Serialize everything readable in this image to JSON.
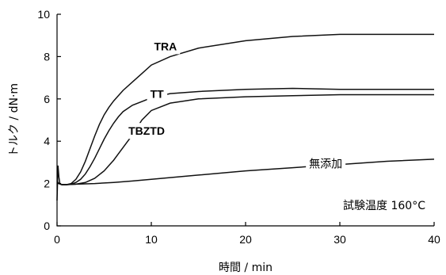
{
  "chart_data": {
    "type": "line",
    "title": "",
    "xlabel": "時間 / min",
    "ylabel": "トルク / dN·m",
    "xlim": [
      0,
      40
    ],
    "ylim": [
      0,
      10
    ],
    "xticks": [
      "0",
      "10",
      "20",
      "30",
      "40"
    ],
    "yticks": [
      "0",
      "2",
      "4",
      "6",
      "8",
      "10"
    ],
    "grid": false,
    "legend": "none",
    "annotation": "試験温度 160°C",
    "series": [
      {
        "name": "TRA",
        "x": [
          0,
          0.2,
          0.5,
          1,
          1.5,
          2,
          2.5,
          3,
          3.5,
          4,
          4.5,
          5,
          5.5,
          6,
          7,
          8,
          9,
          10,
          12,
          15,
          20,
          25,
          30,
          35,
          40
        ],
        "y": [
          2.1,
          2.0,
          1.95,
          1.95,
          2.0,
          2.2,
          2.55,
          3.05,
          3.65,
          4.25,
          4.8,
          5.25,
          5.6,
          5.9,
          6.4,
          6.8,
          7.2,
          7.6,
          8.0,
          8.4,
          8.75,
          8.95,
          9.05,
          9.05,
          9.05
        ]
      },
      {
        "name": "TT",
        "x": [
          0,
          0.2,
          0.5,
          1,
          1.5,
          2,
          2.5,
          3,
          3.5,
          4,
          4.5,
          5,
          5.5,
          6,
          6.5,
          7,
          8,
          10,
          12,
          15,
          20,
          25,
          30,
          35,
          40
        ],
        "y": [
          2.1,
          2.0,
          1.95,
          1.95,
          1.97,
          2.05,
          2.2,
          2.45,
          2.8,
          3.2,
          3.65,
          4.1,
          4.5,
          4.85,
          5.15,
          5.4,
          5.7,
          6.05,
          6.25,
          6.35,
          6.45,
          6.5,
          6.45,
          6.45,
          6.45
        ]
      },
      {
        "name": "TBZTD",
        "x": [
          0,
          0.2,
          0.5,
          1,
          2,
          3,
          4,
          5,
          5.5,
          6,
          6.5,
          7,
          7.5,
          8,
          9,
          10,
          12,
          15,
          20,
          25,
          30,
          35,
          40
        ],
        "y": [
          2.1,
          2.0,
          1.95,
          1.95,
          1.97,
          2.05,
          2.25,
          2.6,
          2.85,
          3.1,
          3.4,
          3.7,
          4.0,
          4.3,
          5.0,
          5.45,
          5.8,
          6.0,
          6.1,
          6.15,
          6.2,
          6.2,
          6.2
        ]
      },
      {
        "name": "無添加",
        "x": [
          0,
          0.1,
          0.2,
          0.3,
          0.5,
          1,
          2,
          4,
          6,
          8,
          10,
          15,
          20,
          25,
          30,
          35,
          40
        ],
        "y": [
          1.2,
          2.85,
          2.3,
          2.0,
          1.95,
          1.95,
          1.97,
          2.0,
          2.05,
          2.12,
          2.2,
          2.4,
          2.6,
          2.75,
          2.9,
          3.05,
          3.15
        ]
      }
    ],
    "series_label_positions": [
      {
        "name": "TRA",
        "x": 11.5,
        "y": 8.3
      },
      {
        "name": "TT",
        "x": 10.6,
        "y": 6.05
      },
      {
        "name": "TBZTD",
        "x": 9.5,
        "y": 4.3
      },
      {
        "name": "無添加",
        "x": 28.5,
        "y": 2.75
      }
    ]
  }
}
